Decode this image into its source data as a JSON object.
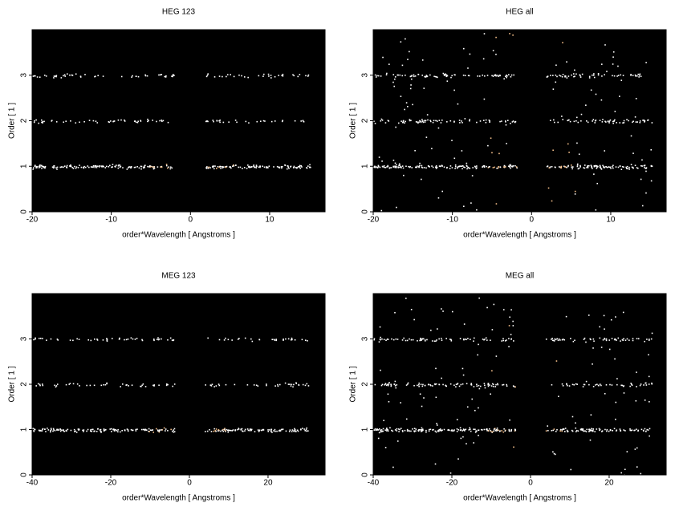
{
  "chart_data": [
    {
      "type": "heatmap",
      "title": "HEG 123",
      "xlabel": "order*Wavelength [ Angstroms ]",
      "ylabel": "Order [ 1 ]",
      "xlim": [
        -20,
        17
      ],
      "ylim": [
        0,
        4
      ],
      "xticks": [
        -20,
        -10,
        0,
        10
      ],
      "yticks": [
        0,
        1,
        2,
        3
      ]
    },
    {
      "type": "heatmap",
      "title": "HEG all",
      "xlabel": "order*Wavelength [ Angstroms ]",
      "ylabel": "Order [ 1 ]",
      "xlim": [
        -20,
        17
      ],
      "ylim": [
        0,
        4
      ],
      "xticks": [
        -20,
        -10,
        0,
        10
      ],
      "yticks": [
        0,
        1,
        2,
        3
      ]
    },
    {
      "type": "heatmap",
      "title": "MEG 123",
      "xlabel": "order*Wavelength [ Angstroms ]",
      "ylabel": "Order [ 1 ]",
      "xlim": [
        -40,
        34.5
      ],
      "ylim": [
        0,
        4
      ],
      "xticks": [
        -40,
        -20,
        0,
        20
      ],
      "yticks": [
        0,
        1,
        2,
        3
      ]
    },
    {
      "type": "heatmap",
      "title": "MEG all",
      "xlabel": "order*Wavelength [ Angstroms ]",
      "ylabel": "Order [ 1 ]",
      "xlim": [
        -40,
        34.5
      ],
      "ylim": [
        0,
        4
      ],
      "xticks": [
        -40,
        -20,
        0,
        20
      ],
      "yticks": [
        0,
        1,
        2,
        3
      ]
    }
  ]
}
